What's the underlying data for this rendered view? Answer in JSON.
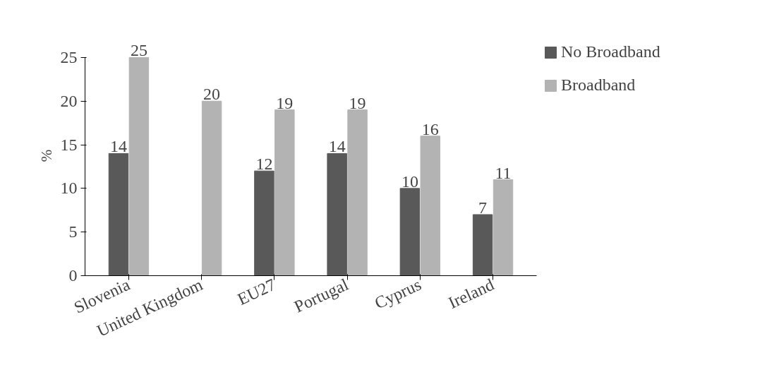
{
  "chart_data": {
    "type": "bar",
    "ylabel": "%",
    "categories": [
      "Slovenia",
      "United Kingdom",
      "EU27",
      "Portugal",
      "Cyprus",
      "Ireland"
    ],
    "series": [
      {
        "name": "No Broadband",
        "color": "#595959",
        "values": [
          14,
          null,
          12,
          14,
          10,
          7
        ]
      },
      {
        "name": "Broadband",
        "color": "#b3b3b3",
        "values": [
          25,
          20,
          19,
          19,
          16,
          11
        ]
      }
    ],
    "ylim": [
      0,
      25
    ],
    "yticks": [
      0,
      5,
      10,
      15,
      20,
      25
    ],
    "data_labels": true,
    "grid": false,
    "legend": "top right"
  }
}
